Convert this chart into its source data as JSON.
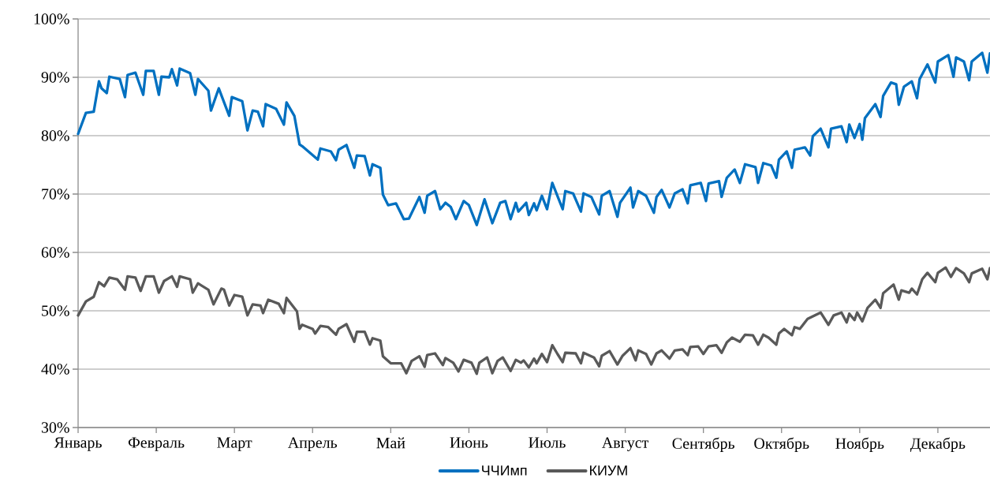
{
  "chart_data": {
    "type": "line",
    "categories": [
      "Январь",
      null,
      null,
      null,
      null,
      null,
      null,
      null,
      null,
      null,
      null,
      null,
      null,
      null,
      null,
      null,
      null,
      null,
      null,
      null,
      null,
      null,
      null,
      null,
      null,
      null,
      null,
      null,
      null,
      null,
      "Февраль",
      null,
      null,
      null,
      null,
      null,
      null,
      null,
      null,
      null,
      null,
      null,
      null,
      null,
      null,
      null,
      null,
      null,
      null,
      null,
      null,
      null,
      null,
      null,
      null,
      null,
      null,
      null,
      null,
      null,
      "Март",
      null,
      null,
      null,
      null,
      null,
      null,
      null,
      null,
      null,
      null,
      null,
      null,
      null,
      null,
      null,
      null,
      null,
      null,
      null,
      null,
      null,
      null,
      null,
      null,
      null,
      null,
      null,
      null,
      null,
      "Апрель",
      null,
      null,
      null,
      null,
      null,
      null,
      null,
      null,
      null,
      null,
      null,
      null,
      null,
      null,
      null,
      null,
      null,
      null,
      null,
      null,
      null,
      null,
      null,
      null,
      null,
      null,
      null,
      null,
      null,
      "Май",
      null,
      null,
      null,
      null,
      null,
      null,
      null,
      null,
      null,
      null,
      null,
      null,
      null,
      null,
      null,
      null,
      null,
      null,
      null,
      null,
      null,
      null,
      null,
      null,
      null,
      null,
      null,
      null,
      null,
      "Июнь",
      null,
      null,
      null,
      null,
      null,
      null,
      null,
      null,
      null,
      null,
      null,
      null,
      null,
      null,
      null,
      null,
      null,
      null,
      null,
      null,
      null,
      null,
      null,
      null,
      null,
      null,
      null,
      null,
      null,
      "Июль",
      null,
      null,
      null,
      null,
      null,
      null,
      null,
      null,
      null,
      null,
      null,
      null,
      null,
      null,
      null,
      null,
      null,
      null,
      null,
      null,
      null,
      null,
      null,
      null,
      null,
      null,
      null,
      null,
      null,
      "Август",
      null,
      null,
      null,
      null,
      null,
      null,
      null,
      null,
      null,
      null,
      null,
      null,
      null,
      null,
      null,
      null,
      null,
      null,
      null,
      null,
      null,
      null,
      null,
      null,
      null,
      null,
      null,
      null,
      null,
      "Сентябрь",
      null,
      null,
      null,
      null,
      null,
      null,
      null,
      null,
      null,
      null,
      null,
      null,
      null,
      null,
      null,
      null,
      null,
      null,
      null,
      null,
      null,
      null,
      null,
      null,
      null,
      null,
      null,
      null,
      null,
      "Октябрь",
      null,
      null,
      null,
      null,
      null,
      null,
      null,
      null,
      null,
      null,
      null,
      null,
      null,
      null,
      null,
      null,
      null,
      null,
      null,
      null,
      null,
      null,
      null,
      null,
      null,
      null,
      null,
      null,
      null,
      "Ноябрь",
      null,
      null,
      null,
      null,
      null,
      null,
      null,
      null,
      null,
      null,
      null,
      null,
      null,
      null,
      null,
      null,
      null,
      null,
      null,
      null,
      null,
      null,
      null,
      null,
      null,
      null,
      null,
      null,
      null,
      "Декабрь",
      null,
      null,
      null,
      null,
      null,
      null,
      null,
      null,
      null,
      null,
      null,
      null,
      null,
      null,
      null,
      null,
      null,
      null,
      null,
      null
    ],
    "ylim": [
      30,
      100
    ],
    "yticks": [
      {
        "value": 30,
        "label": "30%"
      },
      {
        "value": 40,
        "label": "40%"
      },
      {
        "value": 50,
        "label": "50%"
      },
      {
        "value": 60,
        "label": "60%"
      },
      {
        "value": 70,
        "label": "70%"
      },
      {
        "value": 80,
        "label": "80%"
      },
      {
        "value": 90,
        "label": "90%"
      },
      {
        "value": 100,
        "label": "100%"
      }
    ],
    "grid": "y",
    "legend": "bottom",
    "marker": "none",
    "line_style": "solid",
    "series": [
      {
        "name": "ЧЧИмп",
        "color": "#0070c0",
        "values": [
          80.3,
          null,
          null,
          83.9,
          null,
          null,
          84.1,
          null,
          89.3,
          88.1,
          null,
          87.3,
          90.1,
          null,
          null,
          null,
          89.7,
          null,
          86.6,
          90.4,
          null,
          null,
          90.8,
          null,
          null,
          87.0,
          91.1,
          null,
          null,
          91.1,
          null,
          87.0,
          90.1,
          null,
          null,
          90.0,
          91.4,
          null,
          88.6,
          91.5,
          null,
          null,
          null,
          90.7,
          null,
          87.0,
          89.7,
          null,
          null,
          null,
          87.7,
          84.3,
          null,
          null,
          88.1,
          null,
          null,
          null,
          83.4,
          86.6,
          null,
          null,
          null,
          85.9,
          null,
          80.9,
          null,
          84.3,
          null,
          84.1,
          null,
          81.6,
          85.4,
          null,
          null,
          null,
          84.6,
          null,
          null,
          81.9,
          85.7,
          null,
          null,
          83.4,
          null,
          78.5,
          78.2,
          null,
          null,
          null,
          null,
          null,
          75.9,
          77.8,
          null,
          null,
          null,
          77.3,
          null,
          75.8,
          77.6,
          null,
          null,
          78.4,
          null,
          null,
          74.5,
          76.6,
          null,
          null,
          76.5,
          null,
          73.2,
          75.1,
          null,
          null,
          74.5,
          69.9,
          null,
          68.1,
          null,
          null,
          68.4,
          null,
          null,
          65.7,
          null,
          65.8,
          null,
          null,
          null,
          69.5,
          null,
          66.8,
          69.7,
          null,
          null,
          70.5,
          null,
          67.4,
          null,
          68.5,
          null,
          67.8,
          null,
          65.7,
          null,
          null,
          68.8,
          null,
          68.1,
          null,
          null,
          64.7,
          null,
          null,
          69.1,
          null,
          null,
          65.0,
          null,
          null,
          68.5,
          null,
          68.8,
          null,
          65.7,
          null,
          68.5,
          67.0,
          null,
          null,
          68.5,
          66.4,
          null,
          68.4,
          67.2,
          null,
          69.7,
          null,
          67.4,
          null,
          71.9,
          null,
          null,
          null,
          67.4,
          70.5,
          null,
          null,
          70.1,
          null,
          null,
          67.0,
          70.1,
          null,
          null,
          69.5,
          null,
          null,
          66.5,
          69.7,
          null,
          null,
          70.5,
          null,
          null,
          66.1,
          68.5,
          null,
          null,
          null,
          71.1,
          67.7,
          null,
          70.5,
          null,
          null,
          69.7,
          null,
          null,
          66.8,
          69.5,
          null,
          70.7,
          null,
          null,
          67.7,
          null,
          70.1,
          null,
          null,
          70.8,
          null,
          68.4,
          71.5,
          null,
          null,
          null,
          71.9,
          null,
          68.8,
          71.8,
          null,
          null,
          null,
          72.2,
          69.5,
          null,
          72.8,
          null,
          null,
          74.2,
          null,
          71.9,
          null,
          75.1,
          null,
          null,
          null,
          74.6,
          71.9,
          null,
          75.3,
          null,
          null,
          74.9,
          null,
          72.8,
          75.9,
          null,
          null,
          77.3,
          null,
          74.5,
          77.6,
          null,
          null,
          null,
          78.0,
          null,
          76.6,
          79.9,
          null,
          null,
          81.2,
          null,
          null,
          78.0,
          81.2,
          null,
          null,
          null,
          81.6,
          null,
          78.9,
          81.9,
          null,
          79.6,
          null,
          82.0,
          79.3,
          83.0,
          null,
          null,
          null,
          85.4,
          null,
          83.2,
          86.8,
          null,
          null,
          89.1,
          null,
          88.8,
          85.3,
          null,
          88.4,
          null,
          null,
          89.3,
          null,
          86.4,
          89.7,
          null,
          null,
          92.2,
          null,
          null,
          89.1,
          92.7,
          null,
          null,
          null,
          93.8,
          null,
          90.1,
          93.4,
          null,
          null,
          92.7,
          null,
          89.5,
          92.7,
          null,
          null,
          null,
          94.2,
          null,
          90.8,
          94.1
        ]
      },
      {
        "name": "КИУМ",
        "color": "#595959",
        "values": [
          49.2,
          null,
          null,
          51.6,
          null,
          null,
          52.4,
          null,
          54.9,
          null,
          54.2,
          null,
          55.7,
          null,
          null,
          55.4,
          null,
          null,
          53.6,
          55.9,
          null,
          null,
          55.7,
          null,
          53.4,
          null,
          55.9,
          null,
          null,
          55.9,
          null,
          53.1,
          null,
          55.1,
          null,
          null,
          55.9,
          null,
          54.1,
          55.9,
          null,
          null,
          null,
          55.4,
          53.1,
          null,
          54.7,
          null,
          null,
          null,
          53.6,
          null,
          51.1,
          null,
          null,
          53.8,
          53.6,
          null,
          50.9,
          null,
          52.7,
          null,
          null,
          52.4,
          null,
          49.2,
          null,
          51.1,
          null,
          null,
          50.9,
          49.6,
          null,
          51.9,
          null,
          null,
          null,
          51.2,
          null,
          49.6,
          52.2,
          null,
          null,
          null,
          49.9,
          46.9,
          47.6,
          null,
          null,
          null,
          46.9,
          46.1,
          null,
          47.4,
          null,
          null,
          47.2,
          null,
          null,
          45.9,
          46.9,
          null,
          null,
          47.7,
          null,
          null,
          44.7,
          46.4,
          null,
          null,
          46.4,
          null,
          44.2,
          45.3,
          null,
          null,
          44.9,
          42.2,
          null,
          null,
          41.0,
          null,
          null,
          null,
          41.0,
          null,
          39.3,
          null,
          41.4,
          null,
          null,
          42.2,
          null,
          40.4,
          42.4,
          null,
          null,
          42.7,
          null,
          null,
          40.7,
          41.9,
          null,
          null,
          41.1,
          null,
          39.6,
          null,
          41.6,
          null,
          null,
          41.1,
          null,
          39.2,
          41.1,
          null,
          null,
          42.0,
          null,
          39.3,
          null,
          41.4,
          null,
          42.0,
          null,
          null,
          39.7,
          null,
          41.6,
          null,
          41.1,
          41.5,
          null,
          40.3,
          null,
          41.8,
          41.0,
          null,
          42.6,
          null,
          41.2,
          null,
          44.1,
          null,
          42.6,
          null,
          41.2,
          42.8,
          null,
          null,
          null,
          42.7,
          null,
          41.0,
          42.8,
          null,
          null,
          null,
          42.0,
          null,
          40.5,
          42.3,
          null,
          null,
          43.1,
          null,
          null,
          40.8,
          null,
          42.3,
          null,
          null,
          43.6,
          null,
          41.5,
          43.2,
          null,
          null,
          42.6,
          null,
          40.8,
          null,
          42.7,
          null,
          43.2,
          null,
          null,
          41.8,
          null,
          43.2,
          null,
          null,
          43.4,
          null,
          42.4,
          43.8,
          null,
          null,
          43.9,
          null,
          42.6,
          null,
          43.9,
          null,
          null,
          44.1,
          null,
          42.8,
          null,
          44.6,
          null,
          45.4,
          null,
          null,
          44.7,
          null,
          45.9,
          null,
          null,
          45.8,
          null,
          44.2,
          null,
          45.9,
          null,
          45.4,
          null,
          null,
          44.2,
          46.1,
          null,
          46.9,
          null,
          null,
          45.8,
          47.2,
          null,
          46.9,
          null,
          null,
          48.6,
          null,
          null,
          null,
          null,
          49.7,
          null,
          null,
          47.6,
          null,
          49.2,
          null,
          null,
          49.7,
          null,
          48.0,
          49.5,
          null,
          48.4,
          49.7,
          null,
          48.2,
          null,
          50.5,
          null,
          null,
          51.9,
          null,
          50.5,
          53.0,
          null,
          null,
          null,
          54.5,
          null,
          51.9,
          53.5,
          null,
          null,
          53.1,
          53.8,
          null,
          52.8,
          null,
          55.4,
          null,
          56.5,
          null,
          null,
          54.9,
          56.5,
          null,
          null,
          57.4,
          null,
          55.8,
          null,
          57.3,
          null,
          null,
          56.4,
          null,
          54.9,
          56.4,
          null,
          null,
          null,
          57.2,
          null,
          55.4,
          57.3
        ]
      }
    ]
  }
}
